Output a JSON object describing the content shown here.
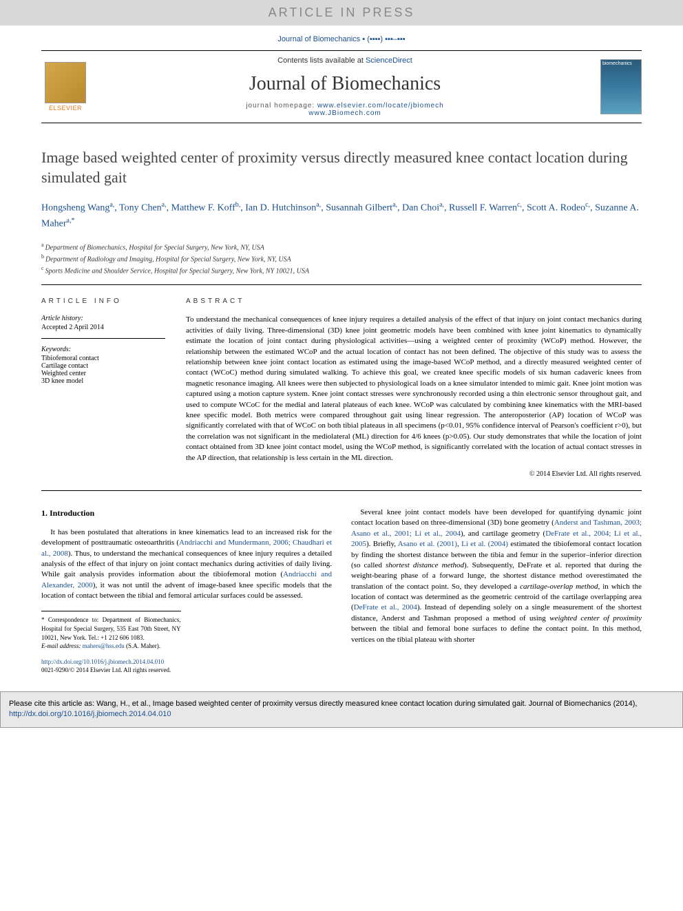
{
  "banner": "ARTICLE IN PRESS",
  "journal_ref": "Journal of Biomechanics ▪ (▪▪▪▪) ▪▪▪–▪▪▪",
  "header": {
    "contents_prefix": "Contents lists available at ",
    "contents_link": "ScienceDirect",
    "journal_title": "Journal of Biomechanics",
    "homepage_label": "journal homepage: ",
    "homepage_url1": "www.elsevier.com/locate/jbiomech",
    "homepage_url2": "www.JBiomech.com",
    "elsevier": "ELSEVIER",
    "cover_text": "biomechanics"
  },
  "title": "Image based weighted center of proximity versus directly measured knee contact location during simulated gait",
  "authors_html": "Hongsheng Wang|a|, Tony Chen|a|, Matthew F. Koff|b|, Ian D. Hutchinson|a|, Susannah Gilbert|a|, Dan Choi|a|, Russell F. Warren|c|, Scott A. Rodeo|c|, Suzanne A. Maher|a,*",
  "affiliations": [
    {
      "sup": "a",
      "text": "Department of Biomechanics, Hospital for Special Surgery, New York, NY, USA"
    },
    {
      "sup": "b",
      "text": "Department of Radiology and Imaging, Hospital for Special Surgery, New York, NY, USA"
    },
    {
      "sup": "c",
      "text": "Sports Medicine and Shoulder Service, Hospital for Special Surgery, New York, NY 10021, USA"
    }
  ],
  "info": {
    "section": "ARTICLE INFO",
    "history_label": "Article history:",
    "history_value": "Accepted 2 April 2014",
    "keywords_label": "Keywords:",
    "keywords": [
      "Tibiofemoral contact",
      "Cartilage contact",
      "Weighted center",
      "3D knee model"
    ]
  },
  "abstract": {
    "section": "ABSTRACT",
    "text": "To understand the mechanical consequences of knee injury requires a detailed analysis of the effect of that injury on joint contact mechanics during activities of daily living. Three-dimensional (3D) knee joint geometric models have been combined with knee joint kinematics to dynamically estimate the location of joint contact during physiological activities—using a weighted center of proximity (WCoP) method. However, the relationship between the estimated WCoP and the actual location of contact has not been defined. The objective of this study was to assess the relationship between knee joint contact location as estimated using the image-based WCoP method, and a directly measured weighted center of contact (WCoC) method during simulated walking. To achieve this goal, we created knee specific models of six human cadaveric knees from magnetic resonance imaging. All knees were then subjected to physiological loads on a knee simulator intended to mimic gait. Knee joint motion was captured using a motion capture system. Knee joint contact stresses were synchronously recorded using a thin electronic sensor throughout gait, and used to compute WCoC for the medial and lateral plateaus of each knee. WCoP was calculated by combining knee kinematics with the MRI-based knee specific model. Both metrics were compared throughout gait using linear regression. The anteroposterior (AP) location of WCoP was significantly correlated with that of WCoC on both tibial plateaus in all specimens (p<0.01, 95% confidence interval of Pearson's coefficient r>0), but the correlation was not significant in the mediolateral (ML) direction for 4/6 knees (p>0.05). Our study demonstrates that while the location of joint contact obtained from 3D knee joint contact model, using the WCoP method, is significantly correlated with the location of actual contact stresses in the AP direction, that relationship is less certain in the ML direction.",
    "copyright": "© 2014 Elsevier Ltd. All rights reserved."
  },
  "body": {
    "intro_heading": "1. Introduction",
    "intro_p1_pre": "It has been postulated that alterations in knee kinematics lead to an increased risk for the development of posttraumatic osteoarthritis (",
    "intro_p1_ref1": "Andriacchi and Mundermann, 2006; Chaudhari et al., 2008",
    "intro_p1_mid": "). Thus, to understand the mechanical consequences of knee injury requires a detailed analysis of the effect of that injury on joint contact mechanics during activities of daily living. While gait analysis provides information about the tibiofemoral motion (",
    "intro_p1_ref2": "Andriacchi and Alexander, 2000",
    "intro_p1_post": "), it was not until the advent of image-based knee specific models that the location of contact between the tibial and femoral articular surfaces could be assessed.",
    "intro_p2_pre": "Several knee joint contact models have been developed for quantifying dynamic joint contact location based on three-dimensional (3D) bone geometry (",
    "intro_p2_ref1": "Anderst and Tashman, 2003; Asano et al., 2001; Li et al., 2004",
    "intro_p2_mid1": "), and cartilage geometry (",
    "intro_p2_ref2": "DeFrate et al., 2004; Li et al., 2005",
    "intro_p2_mid2": "). Briefly, ",
    "intro_p2_ref3": "Asano et al. (2001)",
    "intro_p2_mid3": ", ",
    "intro_p2_ref4": "Li et al. (2004)",
    "intro_p2_mid4": " estimated the tibiofemoral contact location by finding the shortest distance between the tibia and femur in the superior–inferior direction (so called ",
    "intro_p2_em1": "shortest distance method",
    "intro_p2_mid5": "). Subsequently, DeFrate et al. reported that during the weight-bearing phase of a forward lunge, the shortest distance method overestimated the translation of the contact point. So, they developed a ",
    "intro_p2_em2": "cartilage-overlap method",
    "intro_p2_mid6": ", in which the location of contact was determined as the geometric centroid of the cartilage overlapping area (",
    "intro_p2_ref5": "DeFrate et al., 2004",
    "intro_p2_mid7": "). Instead of depending solely on a single measurement of the shortest distance, Anderst and Tashman proposed a method of using ",
    "intro_p2_em3": "weighted center of proximity",
    "intro_p2_post": " between the tibial and femoral bone surfaces to define the contact point. In this method, vertices on the tibial plateau with shorter"
  },
  "footnote": {
    "corr": "* Correspondence to: Department of Biomechanics, Hospital for Special Surgery, 535 East 70th Street, NY 10021, New York. Tel.: +1 212 606 1083.",
    "email_label": "E-mail address: ",
    "email": "mahers@hss.edu",
    "email_post": " (S.A. Maher)."
  },
  "doi": {
    "url": "http://dx.doi.org/10.1016/j.jbiomech.2014.04.010",
    "issn": "0021-9290/© 2014 Elsevier Ltd. All rights reserved."
  },
  "cite": {
    "pre": "Please cite this article as: Wang, H., et al., Image based weighted center of proximity versus directly measured knee contact location during simulated gait. Journal of Biomechanics (2014), ",
    "url": "http://dx.doi.org/10.1016/j.jbiomech.2014.04.010"
  },
  "colors": {
    "link": "#1a4f8f",
    "banner_bg": "#d8d8d8",
    "banner_fg": "#888888",
    "elsevier_orange": "#e67817",
    "cite_bg": "#e8e8e8"
  }
}
